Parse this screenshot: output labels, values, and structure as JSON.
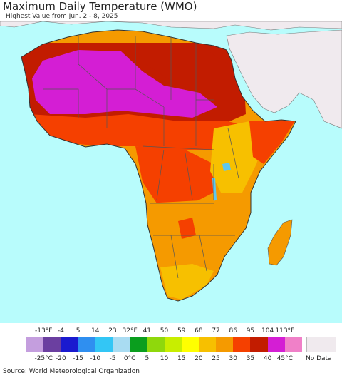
{
  "title": "Maximum Daily Temperature (WMO)",
  "subtitle": "Highest Value from Jun. 2 - 8, 2025",
  "legend": {
    "fahrenheit_ticks": [
      "-13°F",
      "-4",
      "5",
      "14",
      "23",
      "32°F",
      "41",
      "50",
      "59",
      "68",
      "77",
      "86",
      "95",
      "104",
      "113°F"
    ],
    "celsius_ticks": [
      "-25°C",
      "-20",
      "-15",
      "-10",
      "-5",
      "0°C",
      "5",
      "10",
      "15",
      "20",
      "25",
      "30",
      "35",
      "40",
      "45°C"
    ],
    "colors": [
      "#c49ede",
      "#6b3fa0",
      "#1a1acf",
      "#2f8ff0",
      "#33c6f5",
      "#a9dcf2",
      "#0a9e1e",
      "#8fd80c",
      "#c8ee00",
      "#ffff00",
      "#f7c000",
      "#f59a00",
      "#f54000",
      "#c21c00",
      "#d41ed4",
      "#f080c8"
    ],
    "no_data_label": "No Data",
    "no_data_color": "#f0eaee"
  },
  "source": "Source: World Meteorological Organization",
  "map_colors": {
    "ocean": "#b8fcfc",
    "background_land": "#f0eaee",
    "borders": "#555555"
  }
}
